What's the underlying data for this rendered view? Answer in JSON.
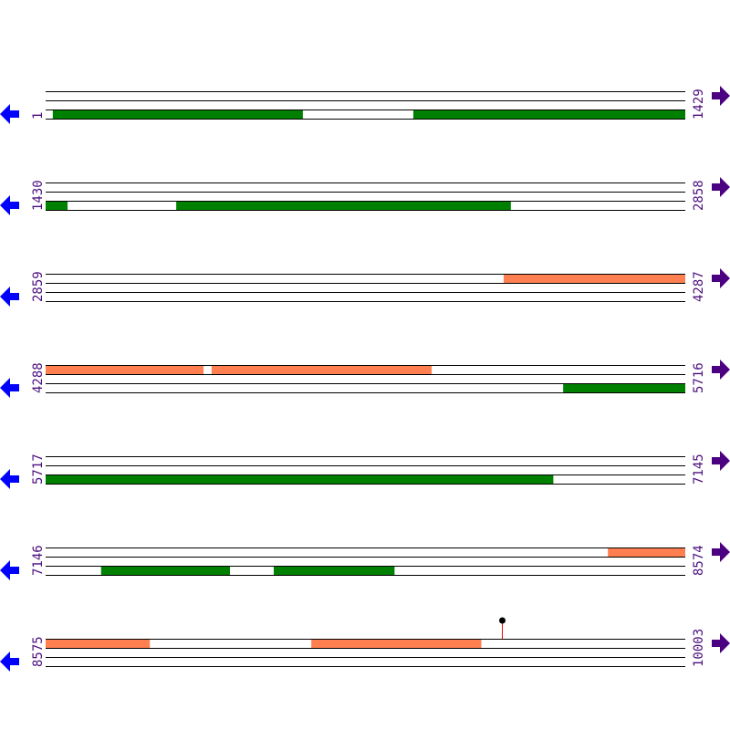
{
  "colors": {
    "forward": "#ff7f50",
    "reverse": "#008000",
    "line": "#000000",
    "left_arrow": "#0000ff",
    "right_arrow": "#4b0082",
    "marker": "#ff0000"
  },
  "rows": [
    {
      "start": "1",
      "end": "1429",
      "features": [
        {
          "lane": 2,
          "from": 17,
          "to": 574,
          "type": "reverse"
        },
        {
          "lane": 2,
          "from": 823,
          "to": 1429,
          "type": "reverse"
        }
      ]
    },
    {
      "start": "1430",
      "end": "2858",
      "features": [
        {
          "lane": 2,
          "from": 1430,
          "to": 1477,
          "type": "reverse"
        },
        {
          "lane": 2,
          "from": 1722,
          "to": 2468,
          "type": "reverse"
        }
      ]
    },
    {
      "start": "2859",
      "end": "4287",
      "features": [
        {
          "lane": 0,
          "from": 3883,
          "to": 4287,
          "type": "forward"
        }
      ]
    },
    {
      "start": "4288",
      "end": "5716",
      "features": [
        {
          "lane": 0,
          "from": 4288,
          "to": 4639,
          "type": "forward"
        },
        {
          "lane": 0,
          "from": 4659,
          "to": 5149,
          "type": "forward"
        },
        {
          "lane": 2,
          "from": 5445,
          "to": 5716,
          "type": "reverse"
        }
      ]
    },
    {
      "start": "5717",
      "end": "7145",
      "features": [
        {
          "lane": 2,
          "from": 5717,
          "to": 6850,
          "type": "reverse"
        }
      ]
    },
    {
      "start": "7146",
      "end": "8574",
      "features": [
        {
          "lane": 0,
          "from": 8403,
          "to": 8574,
          "type": "forward"
        },
        {
          "lane": 2,
          "from": 7270,
          "to": 7556,
          "type": "reverse"
        },
        {
          "lane": 2,
          "from": 7656,
          "to": 7924,
          "type": "reverse"
        }
      ]
    },
    {
      "start": "8575",
      "end": "10003",
      "features": [
        {
          "lane": 0,
          "from": 8575,
          "to": 8806,
          "type": "forward"
        },
        {
          "lane": 0,
          "from": 9169,
          "to": 9547,
          "type": "forward"
        }
      ],
      "markers": [
        {
          "pos": 9595
        }
      ]
    }
  ]
}
